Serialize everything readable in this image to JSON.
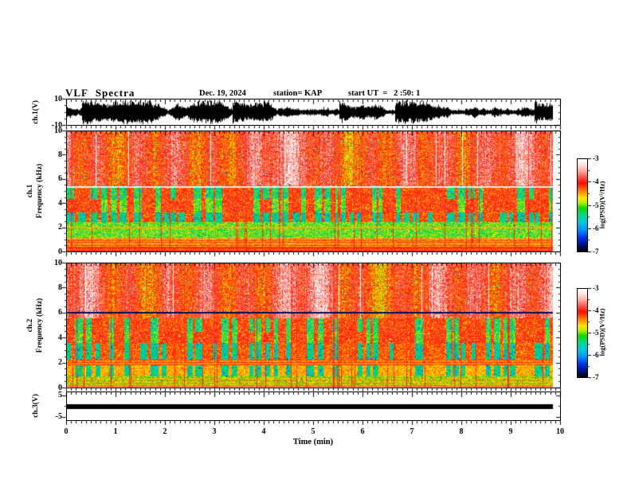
{
  "header": {
    "title": "VLF Spectra",
    "date": "Dec. 19, 2024",
    "station": "station= KAP",
    "start_ut": "start UT  =   2 :50: 1"
  },
  "panels": {
    "wave": {
      "label": "ch.1(V)",
      "ymax": "10",
      "ymin": "-10"
    },
    "spec1": {
      "channel": "ch.1",
      "ylabel": "Frequency (kHz)",
      "yticks": [
        "10",
        "8",
        "6",
        "4",
        "2",
        "0"
      ]
    },
    "spec2": {
      "channel": "ch.2",
      "ylabel": "Frequency (kHz)",
      "yticks": [
        "10",
        "8",
        "6",
        "4",
        "2",
        "0"
      ]
    },
    "ch3": {
      "label": "ch.3(V)",
      "ymax": "5",
      "ymin": "-5"
    }
  },
  "xaxis": {
    "label": "Time  (min)",
    "ticks": [
      "0",
      "1",
      "2",
      "3",
      "4",
      "5",
      "6",
      "7",
      "8",
      "9",
      "10"
    ]
  },
  "colorbars": [
    {
      "label": "log(PSD)(V²/Hz)",
      "ticks": [
        "-3",
        "-4",
        "-5",
        "-6",
        "-7"
      ]
    },
    {
      "label": "log(PSD)(V²/Hz)",
      "ticks": [
        "-3",
        "-4",
        "-5",
        "-6",
        "-7"
      ]
    }
  ],
  "chart_data": {
    "figure": "VLF multi-panel spectra: ch.1 waveform, ch.1 spectrogram, ch.2 spectrogram, ch.3 waveform",
    "colormap": [
      [
        0.0,
        "#ffffff"
      ],
      [
        0.05,
        "#ffe9e9"
      ],
      [
        0.12,
        "#ffb0a8"
      ],
      [
        0.2,
        "#ff4f44"
      ],
      [
        0.26,
        "#ff0f00"
      ],
      [
        0.34,
        "#ff7a00"
      ],
      [
        0.42,
        "#ffe400"
      ],
      [
        0.47,
        "#baee00"
      ],
      [
        0.53,
        "#12d800"
      ],
      [
        0.61,
        "#00d88a"
      ],
      [
        0.69,
        "#00c6df"
      ],
      [
        0.77,
        "#008cff"
      ],
      [
        0.85,
        "#0033e8"
      ],
      [
        0.93,
        "#001080"
      ],
      [
        1.0,
        "#000000"
      ]
    ],
    "panels": [
      {
        "id": "ch1-waveform",
        "type": "line",
        "xlim": [
          0,
          10
        ],
        "ylim": [
          -10,
          10
        ],
        "x_data_end": 9.84,
        "seed": 7,
        "signal": "dense broadband noise, envelope varying, peaks near full scale"
      },
      {
        "id": "ch1-spectrogram",
        "type": "heatmap",
        "xlim": [
          0,
          10
        ],
        "ylim": [
          0,
          10
        ],
        "zlim": [
          -7,
          -3
        ],
        "x_data_end": 9.84,
        "seed": 21,
        "red_columns": 0.055,
        "white_streaks": 0.02,
        "bands": [
          {
            "f": [
              5.5,
              10.01
            ],
            "mode": "striped",
            "base": -3.95,
            "stripe": 0.5,
            "noise": 0.42
          },
          {
            "f": [
              4.4,
              5.5
            ],
            "mode": "blocks",
            "on": -5.35,
            "off": -4.05,
            "p_on": 0.62,
            "noise": 0.5
          },
          {
            "f": [
              3.3,
              4.4
            ],
            "mode": "blocks",
            "on": -5.05,
            "off": -4.0,
            "p_on": 0.45,
            "noise": 0.45
          },
          {
            "f": [
              2.5,
              3.3
            ],
            "mode": "blocks",
            "on": -5.5,
            "off": -4.15,
            "p_on": 0.8,
            "noise": 0.5
          },
          {
            "f": [
              1.15,
              2.5
            ],
            "mode": "flat",
            "base": -5.05,
            "noise": 0.5
          },
          {
            "f": [
              0.35,
              1.15
            ],
            "mode": "rows",
            "values": [
              -4.5,
              -4.05,
              -4.55,
              -3.7,
              -4.45,
              -4.2
            ],
            "noise": 0.22
          },
          {
            "f": [
              -0.01,
              0.35
            ],
            "mode": "rows",
            "values": [
              -3.95,
              -4.35,
              -4.1
            ],
            "noise": 0.2
          }
        ],
        "h_lines": [
          {
            "f": 5.42,
            "v": -3.2
          },
          {
            "f": 2.03,
            "v": -4.5
          }
        ]
      },
      {
        "id": "ch2-spectrogram",
        "type": "heatmap",
        "xlim": [
          0,
          10
        ],
        "ylim": [
          0,
          10
        ],
        "zlim": [
          -7,
          -3
        ],
        "x_data_end": 9.84,
        "seed": 22,
        "red_columns": 0.05,
        "white_streaks": 0.012,
        "bands": [
          {
            "f": [
              5.6,
              10.01
            ],
            "mode": "striped",
            "base": -3.95,
            "stripe": 0.5,
            "noise": 0.42
          },
          {
            "f": [
              4.5,
              5.6
            ],
            "mode": "blocks",
            "on": -5.3,
            "off": -4.05,
            "p_on": 0.55,
            "noise": 0.5
          },
          {
            "f": [
              3.6,
              4.5
            ],
            "mode": "blocks",
            "on": -5.1,
            "off": -4.0,
            "p_on": 0.5,
            "noise": 0.45
          },
          {
            "f": [
              2.3,
              3.6
            ],
            "mode": "blocks",
            "on": -5.5,
            "off": -4.2,
            "p_on": 0.78,
            "noise": 0.5
          },
          {
            "f": [
              1.85,
              2.3
            ],
            "mode": "rows",
            "values": [
              -4.4,
              -4.1,
              -4.5
            ],
            "noise": 0.3
          },
          {
            "f": [
              0.9,
              1.85
            ],
            "mode": "blocks",
            "on": -5.45,
            "off": -4.5,
            "p_on": 0.7,
            "noise": 0.5
          },
          {
            "f": [
              0.15,
              0.9
            ],
            "mode": "rows",
            "values": [
              -4.9,
              -4.5,
              -5.0,
              -4.4
            ],
            "noise": 0.3
          },
          {
            "f": [
              -0.01,
              0.15
            ],
            "mode": "rows",
            "values": [
              -3.5,
              -4.2,
              -3.4
            ],
            "noise": 0.15
          }
        ],
        "h_lines": [
          {
            "f": 6.05,
            "v": -6.8
          },
          {
            "f": 1.95,
            "v": -4.4
          }
        ]
      },
      {
        "id": "ch3-waveform",
        "type": "line",
        "xlim": [
          0,
          10
        ],
        "ylim": [
          -5,
          5
        ],
        "x_data_end": 9.84,
        "value": 0,
        "bar_halfwidth_volts": 1.1,
        "signal": "flat/saturated constant trace at 0 V drawn as thick black bar"
      }
    ]
  }
}
